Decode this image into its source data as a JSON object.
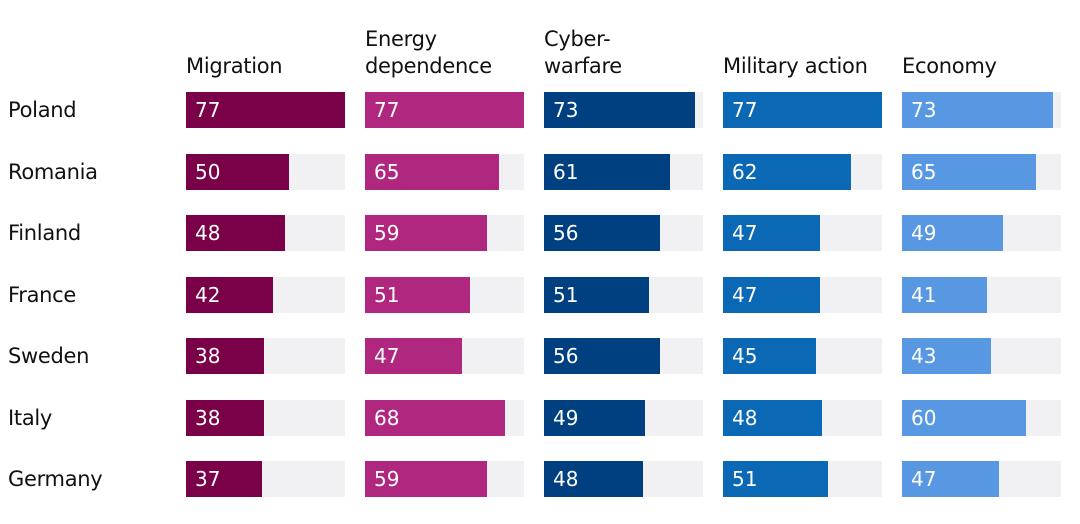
{
  "chart_data": {
    "type": "bar",
    "orientation": "horizontal",
    "layout": "small-multiples",
    "categories": [
      "Poland",
      "Romania",
      "Finland",
      "France",
      "Sweden",
      "Italy",
      "Germany"
    ],
    "series": [
      {
        "name": "Migration",
        "color": "#7a0047",
        "values": [
          77,
          50,
          48,
          42,
          38,
          38,
          37
        ]
      },
      {
        "name": "Energy\ndependence",
        "color": "#b0277f",
        "values": [
          77,
          65,
          59,
          51,
          47,
          68,
          59
        ]
      },
      {
        "name": "Cyber-\nwarfare",
        "color": "#003f80",
        "values": [
          73,
          61,
          56,
          51,
          56,
          49,
          48
        ]
      },
      {
        "name": "Military action",
        "color": "#0a68b4",
        "values": [
          77,
          62,
          47,
          47,
          45,
          48,
          51
        ]
      },
      {
        "name": "Economy",
        "color": "#5898e2",
        "values": [
          73,
          65,
          49,
          41,
          43,
          60,
          47
        ]
      }
    ],
    "xlim": [
      0,
      77
    ],
    "track_color": "#f1f1f3",
    "grid": false,
    "legend": "column-headers"
  }
}
